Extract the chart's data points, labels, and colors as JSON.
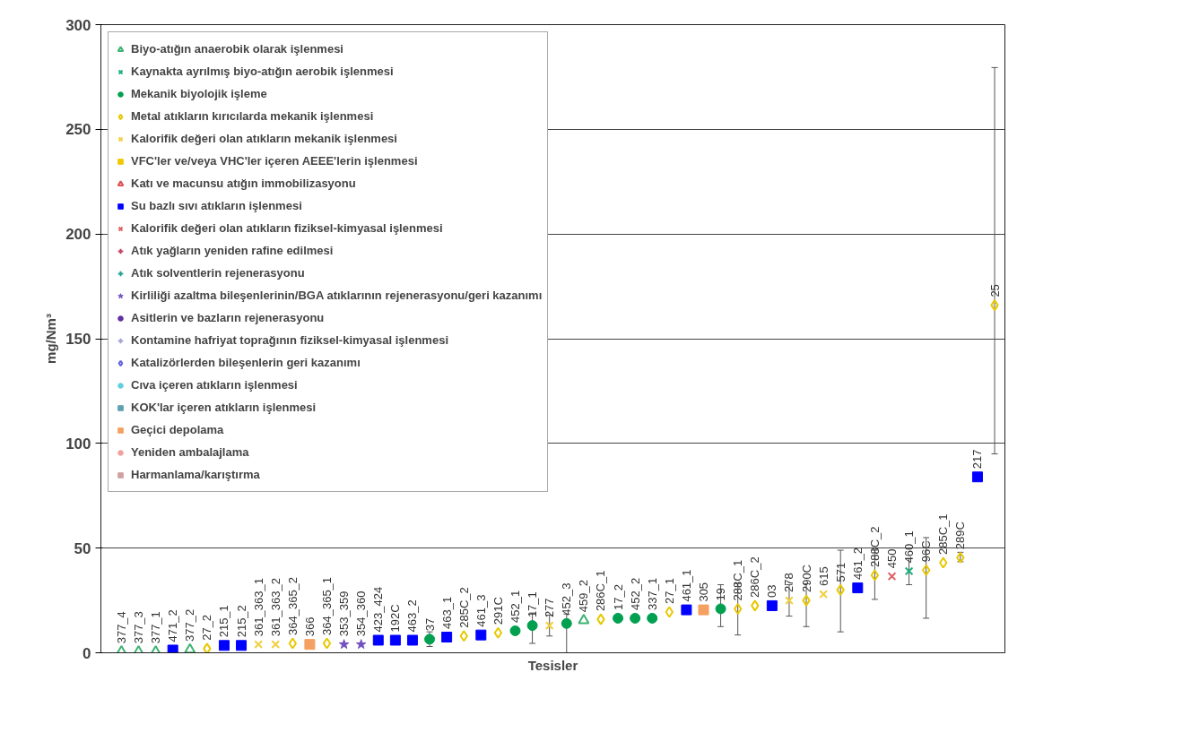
{
  "chart_data": {
    "type": "scatter",
    "xlabel": "Tesisler",
    "ylabel": "mg/Nm³",
    "categories": [
      "377_4",
      "377_3",
      "377_1",
      "471_2",
      "377_2",
      "27_2",
      "215_1",
      "215_2",
      "361_363_1",
      "361_363_2",
      "364_365_2",
      "366",
      "364_365_1",
      "353_359",
      "354_360",
      "423_424",
      "192C",
      "463_2",
      "37",
      "463_1",
      "285C_2",
      "461_3",
      "291C",
      "452_1",
      "17_1",
      "277",
      "452_3",
      "459_2",
      "286C_1",
      "17_2",
      "452_2",
      "337_1",
      "27_1",
      "461_1",
      "305",
      "19",
      "288C_1",
      "286C_2",
      "03",
      "278",
      "290C",
      "615",
      "571",
      "461_2",
      "288C_2",
      "450",
      "460_1",
      "96C",
      "285C_1",
      "289C",
      "217",
      "25"
    ],
    "ylim": [
      0,
      300
    ],
    "yticks": [
      0,
      50,
      100,
      150,
      200,
      250,
      300
    ],
    "grid": "y",
    "legend": "top left",
    "tick_labels": "y",
    "series": [
      {
        "name": "Biyo-atığın anaerobik olarak işlenmesi",
        "color": "#3cb371",
        "marker": "triangle",
        "values": [
          0.5,
          0.5,
          0.5,
          null,
          1.5,
          null,
          null,
          null,
          null,
          null,
          null,
          null,
          null,
          null,
          null,
          null,
          null,
          null,
          null,
          null,
          null,
          null,
          null,
          null,
          null,
          null,
          null,
          15.5,
          null,
          null,
          null,
          null,
          null,
          null,
          null,
          null,
          null,
          null,
          null,
          null,
          null,
          null,
          null,
          null,
          null,
          null,
          null,
          null,
          null,
          null,
          null,
          null
        ]
      },
      {
        "name": "Kaynakta ayrılmış biyo-atığın aerobik işlenmesi",
        "color": "#20b080",
        "marker": "cross",
        "values": [
          null,
          null,
          null,
          null,
          null,
          null,
          null,
          null,
          null,
          null,
          null,
          null,
          null,
          null,
          null,
          null,
          null,
          null,
          null,
          null,
          null,
          null,
          null,
          null,
          null,
          null,
          null,
          null,
          null,
          null,
          null,
          null,
          null,
          null,
          null,
          null,
          null,
          null,
          null,
          null,
          null,
          null,
          null,
          null,
          null,
          null,
          39,
          null,
          null,
          null,
          null,
          null
        ],
        "errors": [
          null,
          null,
          null,
          null,
          null,
          null,
          null,
          null,
          null,
          null,
          null,
          null,
          null,
          null,
          null,
          null,
          null,
          null,
          null,
          null,
          null,
          null,
          null,
          null,
          null,
          null,
          null,
          null,
          null,
          null,
          null,
          null,
          null,
          null,
          null,
          null,
          null,
          null,
          null,
          null,
          null,
          null,
          null,
          null,
          null,
          null,
          [
            32.5,
            45
          ],
          null,
          null,
          null,
          null,
          null
        ]
      },
      {
        "name": "Mekanik biyolojik işleme",
        "color": "#00a050",
        "marker": "circle",
        "values": [
          null,
          null,
          null,
          null,
          null,
          null,
          null,
          null,
          null,
          null,
          null,
          null,
          null,
          null,
          null,
          null,
          null,
          null,
          6.5,
          null,
          null,
          null,
          null,
          10.5,
          13,
          null,
          14,
          null,
          null,
          16.5,
          16.5,
          16.5,
          null,
          null,
          null,
          21,
          null,
          null,
          null,
          null,
          null,
          null,
          null,
          null,
          null,
          null,
          null,
          null,
          null,
          null,
          null,
          null
        ],
        "errors": [
          null,
          null,
          null,
          null,
          null,
          null,
          null,
          null,
          null,
          null,
          null,
          null,
          null,
          null,
          null,
          null,
          null,
          null,
          [
            3,
            10
          ],
          null,
          null,
          null,
          null,
          null,
          [
            4.5,
            19
          ],
          null,
          [
            0,
            18.5
          ],
          null,
          null,
          null,
          null,
          null,
          null,
          null,
          null,
          [
            12.5,
            32.5
          ],
          null,
          null,
          null,
          null,
          null,
          null,
          null,
          null,
          null,
          null,
          null,
          null,
          null,
          null,
          null,
          null
        ]
      },
      {
        "name": "Metal atıkların kırıcılarda mekanik işlenmesi",
        "color": "#e8c800",
        "marker": "diamond",
        "values": [
          null,
          null,
          null,
          null,
          null,
          2,
          null,
          null,
          null,
          null,
          4.5,
          null,
          4.5,
          null,
          null,
          null,
          null,
          null,
          null,
          null,
          8,
          null,
          9.5,
          null,
          null,
          null,
          null,
          null,
          16,
          null,
          null,
          null,
          19.5,
          null,
          null,
          null,
          21,
          22.5,
          null,
          null,
          25,
          null,
          30,
          null,
          37,
          null,
          null,
          39.5,
          43,
          45.5,
          null,
          166
        ],
        "errors": [
          null,
          null,
          null,
          null,
          null,
          null,
          null,
          null,
          null,
          null,
          null,
          null,
          null,
          null,
          null,
          null,
          null,
          null,
          null,
          null,
          null,
          null,
          null,
          null,
          null,
          null,
          null,
          null,
          null,
          null,
          null,
          null,
          null,
          null,
          null,
          null,
          [
            8.5,
            33
          ],
          null,
          null,
          null,
          [
            12.5,
            33
          ],
          null,
          [
            10,
            49
          ],
          null,
          [
            25.5,
            49
          ],
          null,
          null,
          [
            16.5,
            55
          ],
          null,
          [
            43.5,
            48
          ],
          null,
          [
            95,
            279.5
          ]
        ]
      },
      {
        "name": "Kalorifik değeri olan atıkların mekanik işlenmesi",
        "color": "#f0d040",
        "marker": "cross",
        "values": [
          null,
          null,
          null,
          null,
          null,
          null,
          null,
          null,
          4,
          4,
          null,
          null,
          null,
          null,
          null,
          null,
          null,
          null,
          null,
          null,
          null,
          null,
          null,
          null,
          null,
          13,
          null,
          null,
          null,
          null,
          null,
          null,
          null,
          null,
          null,
          null,
          null,
          null,
          null,
          25,
          null,
          28,
          null,
          null,
          null,
          null,
          null,
          null,
          null,
          null,
          null,
          null
        ],
        "errors": [
          null,
          null,
          null,
          null,
          null,
          null,
          null,
          null,
          null,
          null,
          null,
          null,
          null,
          null,
          null,
          null,
          null,
          null,
          null,
          null,
          null,
          null,
          null,
          null,
          null,
          [
            8,
            18
          ],
          null,
          null,
          null,
          null,
          null,
          null,
          null,
          null,
          null,
          null,
          null,
          null,
          null,
          [
            17.5,
            32.5
          ],
          null,
          null,
          null,
          null,
          null,
          null,
          null,
          null,
          null,
          null,
          null,
          null
        ]
      },
      {
        "name": "VFC'ler ve/veya VHC'ler içeren AEEE'lerin işlenmesi",
        "color": "#f0c800",
        "marker": "square",
        "values": [
          null,
          null,
          null,
          null,
          null,
          null,
          null,
          null,
          null,
          null,
          null,
          null,
          null,
          null,
          null,
          null,
          null,
          null,
          null,
          null,
          null,
          null,
          null,
          null,
          null,
          null,
          null,
          null,
          null,
          null,
          null,
          null,
          null,
          null,
          null,
          null,
          null,
          null,
          null,
          null,
          null,
          null,
          null,
          null,
          null,
          null,
          null,
          null,
          null,
          null,
          null,
          null
        ]
      },
      {
        "name": "Katı ve macunsu atığın immobilizasyonu",
        "color": "#e05050",
        "marker": "triangle",
        "values": [
          null,
          null,
          null,
          null,
          null,
          null,
          null,
          null,
          null,
          null,
          null,
          null,
          null,
          null,
          null,
          null,
          null,
          null,
          null,
          null,
          null,
          null,
          null,
          null,
          null,
          null,
          null,
          null,
          null,
          null,
          null,
          null,
          null,
          null,
          null,
          null,
          null,
          null,
          null,
          null,
          null,
          null,
          null,
          null,
          null,
          null,
          null,
          null,
          null,
          null,
          null,
          null
        ]
      },
      {
        "name": "Su bazlı sıvı atıkların işlenmesi",
        "color": "#0000ff",
        "marker": "square",
        "values": [
          null,
          null,
          null,
          1.3,
          null,
          null,
          3.5,
          3.5,
          null,
          null,
          null,
          null,
          null,
          null,
          null,
          6,
          6,
          6,
          null,
          7.5,
          null,
          8.5,
          null,
          null,
          null,
          null,
          null,
          null,
          null,
          null,
          null,
          null,
          null,
          20.5,
          null,
          null,
          null,
          null,
          22.5,
          null,
          null,
          null,
          null,
          31,
          null,
          null,
          null,
          null,
          null,
          null,
          84,
          null
        ]
      },
      {
        "name": "Kalorifik değeri olan atıkların fiziksel-kimyasal işlenmesi",
        "color": "#e06060",
        "marker": "cross",
        "values": [
          null,
          null,
          null,
          null,
          null,
          null,
          null,
          null,
          null,
          null,
          null,
          null,
          null,
          null,
          null,
          null,
          null,
          null,
          null,
          null,
          null,
          null,
          null,
          null,
          null,
          null,
          null,
          null,
          null,
          null,
          null,
          null,
          null,
          null,
          null,
          null,
          null,
          null,
          null,
          null,
          null,
          null,
          null,
          null,
          null,
          36.5,
          null,
          null,
          null,
          null,
          null,
          null
        ]
      },
      {
        "name": "Atık yağların yeniden rafine edilmesi",
        "color": "#c04060",
        "marker": "plus",
        "values": [
          null,
          null,
          null,
          null,
          null,
          null,
          null,
          null,
          null,
          null,
          null,
          null,
          null,
          null,
          null,
          null,
          null,
          null,
          null,
          null,
          null,
          null,
          null,
          null,
          null,
          null,
          null,
          null,
          null,
          null,
          null,
          null,
          null,
          null,
          null,
          null,
          null,
          null,
          null,
          null,
          null,
          null,
          null,
          null,
          null,
          null,
          null,
          null,
          null,
          null,
          null,
          null
        ]
      },
      {
        "name": "Atık solventlerin rejenerasyonu",
        "color": "#20a090",
        "marker": "plus",
        "values": [
          null,
          null,
          null,
          null,
          null,
          null,
          null,
          null,
          null,
          null,
          null,
          null,
          null,
          null,
          null,
          null,
          null,
          null,
          null,
          null,
          null,
          null,
          null,
          null,
          null,
          null,
          null,
          null,
          null,
          null,
          null,
          null,
          null,
          null,
          null,
          null,
          null,
          null,
          null,
          null,
          null,
          null,
          null,
          null,
          null,
          null,
          null,
          null,
          null,
          null,
          null,
          null
        ]
      },
      {
        "name": "Kirliliği azaltma bileşenlerinin/BGA atıklarının rejenerasyonu/geri kazanımı",
        "color": "#7050c0",
        "marker": "star",
        "values": [
          null,
          null,
          null,
          null,
          null,
          null,
          null,
          null,
          null,
          null,
          null,
          null,
          null,
          4,
          4,
          null,
          null,
          null,
          null,
          null,
          null,
          null,
          null,
          null,
          null,
          null,
          null,
          null,
          null,
          null,
          null,
          null,
          null,
          null,
          null,
          null,
          null,
          null,
          null,
          null,
          null,
          null,
          null,
          null,
          null,
          null,
          null,
          null,
          null,
          null,
          null,
          null
        ]
      },
      {
        "name": "Asitlerin ve bazların rejenerasyonu",
        "color": "#6030a0",
        "marker": "circle",
        "values": [
          null,
          null,
          null,
          null,
          null,
          null,
          null,
          null,
          null,
          null,
          null,
          null,
          null,
          null,
          null,
          null,
          null,
          null,
          null,
          null,
          null,
          null,
          null,
          null,
          null,
          null,
          null,
          null,
          null,
          null,
          null,
          null,
          null,
          null,
          null,
          null,
          null,
          null,
          null,
          null,
          null,
          null,
          null,
          null,
          null,
          null,
          null,
          null,
          null,
          null,
          null,
          null
        ]
      },
      {
        "name": "Kontamine hafriyat toprağının fiziksel-kimyasal işlenmesi",
        "color": "#a0a0d0",
        "marker": "plus",
        "values": [
          null,
          null,
          null,
          null,
          null,
          null,
          null,
          null,
          null,
          null,
          null,
          null,
          null,
          null,
          null,
          null,
          null,
          null,
          null,
          null,
          null,
          null,
          null,
          null,
          null,
          null,
          null,
          null,
          null,
          null,
          null,
          null,
          null,
          null,
          null,
          null,
          null,
          null,
          null,
          null,
          null,
          null,
          null,
          null,
          null,
          null,
          null,
          null,
          null,
          null,
          null,
          null
        ]
      },
      {
        "name": "Katalizörlerden bileşenlerin geri kazanımı",
        "color": "#6060e0",
        "marker": "diamond",
        "values": [
          null,
          null,
          null,
          null,
          null,
          null,
          null,
          null,
          null,
          null,
          null,
          null,
          null,
          null,
          null,
          null,
          null,
          null,
          null,
          null,
          null,
          null,
          null,
          null,
          null,
          null,
          null,
          null,
          null,
          null,
          null,
          null,
          null,
          null,
          null,
          null,
          null,
          null,
          null,
          null,
          null,
          null,
          null,
          null,
          null,
          null,
          null,
          null,
          null,
          null,
          null,
          null
        ]
      },
      {
        "name": "Cıva içeren atıkların işlenmesi",
        "color": "#60d0e0",
        "marker": "circle",
        "values": [
          null,
          null,
          null,
          null,
          null,
          null,
          null,
          null,
          null,
          null,
          null,
          null,
          null,
          null,
          null,
          null,
          null,
          null,
          null,
          null,
          null,
          null,
          null,
          null,
          null,
          null,
          null,
          null,
          null,
          null,
          null,
          null,
          null,
          null,
          null,
          null,
          null,
          null,
          null,
          null,
          null,
          null,
          null,
          null,
          null,
          null,
          null,
          null,
          null,
          null,
          null,
          null
        ]
      },
      {
        "name": "KOK'lar içeren atıkların işlenmesi",
        "color": "#60a0b0",
        "marker": "square",
        "values": [
          null,
          null,
          null,
          null,
          null,
          null,
          null,
          null,
          null,
          null,
          null,
          null,
          null,
          null,
          null,
          null,
          null,
          null,
          null,
          null,
          null,
          null,
          null,
          null,
          null,
          null,
          null,
          null,
          null,
          null,
          null,
          null,
          null,
          null,
          null,
          null,
          null,
          null,
          null,
          null,
          null,
          null,
          null,
          null,
          null,
          null,
          null,
          null,
          null,
          null,
          null,
          null
        ]
      },
      {
        "name": "Geçici depolama",
        "color": "#f4a060",
        "marker": "square",
        "values": [
          null,
          null,
          null,
          null,
          null,
          null,
          null,
          null,
          null,
          null,
          null,
          4,
          null,
          null,
          null,
          null,
          null,
          null,
          null,
          null,
          null,
          null,
          null,
          null,
          null,
          null,
          null,
          null,
          null,
          null,
          null,
          null,
          null,
          null,
          20.5,
          null,
          null,
          null,
          null,
          null,
          null,
          null,
          null,
          null,
          null,
          null,
          null,
          null,
          null,
          null,
          null,
          null
        ]
      },
      {
        "name": "Yeniden ambalajlama",
        "color": "#f0a0a0",
        "marker": "circle",
        "values": [
          null,
          null,
          null,
          null,
          null,
          null,
          null,
          null,
          null,
          null,
          null,
          null,
          null,
          null,
          null,
          null,
          null,
          null,
          null,
          null,
          null,
          null,
          null,
          null,
          null,
          null,
          null,
          null,
          null,
          null,
          null,
          null,
          null,
          null,
          null,
          null,
          null,
          null,
          null,
          null,
          null,
          null,
          null,
          null,
          null,
          null,
          null,
          null,
          null,
          null,
          null,
          null
        ]
      },
      {
        "name": "Harmanlama/karıştırma",
        "color": "#d0a0a0",
        "marker": "square",
        "values": [
          null,
          null,
          null,
          null,
          null,
          null,
          null,
          null,
          null,
          null,
          null,
          null,
          null,
          null,
          null,
          null,
          null,
          null,
          null,
          null,
          null,
          null,
          null,
          null,
          null,
          null,
          null,
          null,
          null,
          null,
          null,
          null,
          null,
          null,
          null,
          null,
          null,
          null,
          null,
          null,
          null,
          null,
          null,
          null,
          null,
          null,
          null,
          null,
          null,
          null,
          null,
          null
        ]
      }
    ]
  }
}
